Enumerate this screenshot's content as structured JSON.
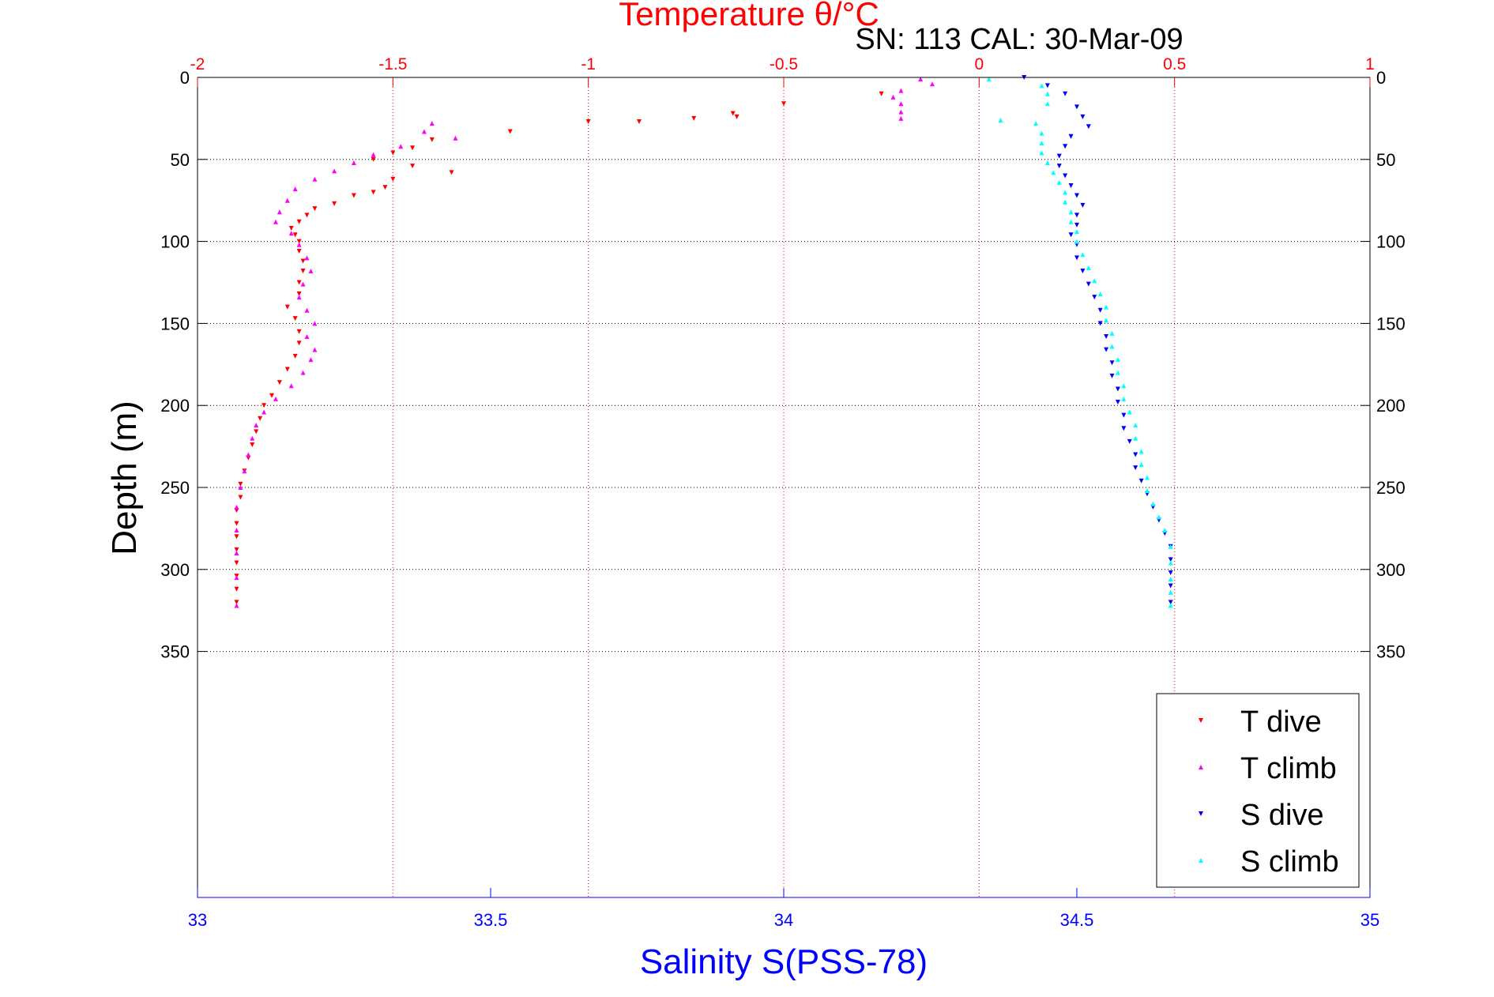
{
  "chart_data": {
    "type": "scatter",
    "title": "Temperature θ/°C",
    "subtitle": "SN: 113  CAL: 30-Mar-09",
    "top_axis": {
      "label": "Temperature θ/°C",
      "range": [
        -2,
        1
      ],
      "ticks": [
        "-2",
        "-1.5",
        "-1",
        "-0.5",
        "0",
        "0.5",
        "1"
      ],
      "color": "#ff0000"
    },
    "bottom_axis": {
      "label": "Salinity S(PSS-78)",
      "range": [
        33,
        35
      ],
      "ticks": [
        "33",
        "33.5",
        "34",
        "34.5",
        "35"
      ],
      "color": "#0000ff"
    },
    "y_axis": {
      "label": "Depth (m)",
      "range": [
        0,
        500
      ],
      "reversed": true,
      "ticks": [
        "0",
        "50",
        "100",
        "150",
        "200",
        "250",
        "300",
        "350"
      ]
    },
    "grid": true,
    "legend_position": "bottom-right",
    "series": [
      {
        "name": "T dive",
        "axis": "temperature",
        "color": "#ff0000",
        "marker": "triangle-down",
        "points": [
          [
            -0.25,
            10
          ],
          [
            -0.5,
            16
          ],
          [
            -0.63,
            22
          ],
          [
            -0.62,
            24
          ],
          [
            -0.73,
            25
          ],
          [
            -0.87,
            27
          ],
          [
            -1.0,
            27
          ],
          [
            -1.2,
            33
          ],
          [
            -1.4,
            38
          ],
          [
            -1.45,
            43
          ],
          [
            -1.5,
            46
          ],
          [
            -1.55,
            50
          ],
          [
            -1.45,
            54
          ],
          [
            -1.35,
            58
          ],
          [
            -1.5,
            62
          ],
          [
            -1.52,
            67
          ],
          [
            -1.55,
            70
          ],
          [
            -1.6,
            72
          ],
          [
            -1.65,
            77
          ],
          [
            -1.7,
            80
          ],
          [
            -1.72,
            84
          ],
          [
            -1.74,
            88
          ],
          [
            -1.76,
            92
          ],
          [
            -1.75,
            96
          ],
          [
            -1.74,
            100
          ],
          [
            -1.74,
            106
          ],
          [
            -1.73,
            112
          ],
          [
            -1.73,
            118
          ],
          [
            -1.74,
            125
          ],
          [
            -1.74,
            132
          ],
          [
            -1.77,
            140
          ],
          [
            -1.75,
            147
          ],
          [
            -1.74,
            155
          ],
          [
            -1.74,
            162
          ],
          [
            -1.75,
            170
          ],
          [
            -1.77,
            178
          ],
          [
            -1.79,
            186
          ],
          [
            -1.81,
            194
          ],
          [
            -1.83,
            200
          ],
          [
            -1.84,
            208
          ],
          [
            -1.85,
            216
          ],
          [
            -1.86,
            224
          ],
          [
            -1.87,
            232
          ],
          [
            -1.88,
            240
          ],
          [
            -1.89,
            248
          ],
          [
            -1.89,
            256
          ],
          [
            -1.9,
            264
          ],
          [
            -1.9,
            272
          ],
          [
            -1.9,
            280
          ],
          [
            -1.9,
            288
          ],
          [
            -1.9,
            296
          ],
          [
            -1.9,
            304
          ],
          [
            -1.9,
            312
          ],
          [
            -1.9,
            320
          ]
        ]
      },
      {
        "name": "T climb",
        "axis": "temperature",
        "color": "#ff00ff",
        "marker": "triangle-up",
        "points": [
          [
            -0.15,
            1
          ],
          [
            -0.12,
            4
          ],
          [
            -0.2,
            8
          ],
          [
            -0.22,
            12
          ],
          [
            -0.2,
            16
          ],
          [
            -0.2,
            21
          ],
          [
            -0.2,
            25
          ],
          [
            -1.4,
            28
          ],
          [
            -1.42,
            33
          ],
          [
            -1.34,
            37
          ],
          [
            -1.48,
            42
          ],
          [
            -1.55,
            47
          ],
          [
            -1.6,
            52
          ],
          [
            -1.65,
            57
          ],
          [
            -1.7,
            62
          ],
          [
            -1.75,
            68
          ],
          [
            -1.77,
            75
          ],
          [
            -1.79,
            82
          ],
          [
            -1.8,
            88
          ],
          [
            -1.76,
            95
          ],
          [
            -1.74,
            102
          ],
          [
            -1.72,
            110
          ],
          [
            -1.71,
            118
          ],
          [
            -1.73,
            126
          ],
          [
            -1.74,
            134
          ],
          [
            -1.72,
            142
          ],
          [
            -1.7,
            150
          ],
          [
            -1.72,
            158
          ],
          [
            -1.7,
            166
          ],
          [
            -1.71,
            172
          ],
          [
            -1.73,
            180
          ],
          [
            -1.76,
            188
          ],
          [
            -1.8,
            196
          ],
          [
            -1.83,
            204
          ],
          [
            -1.85,
            212
          ],
          [
            -1.86,
            220
          ],
          [
            -1.87,
            230
          ],
          [
            -1.88,
            240
          ],
          [
            -1.89,
            250
          ],
          [
            -1.9,
            262
          ],
          [
            -1.9,
            276
          ],
          [
            -1.9,
            290
          ],
          [
            -1.9,
            305
          ],
          [
            -1.9,
            322
          ]
        ]
      },
      {
        "name": "S dive",
        "axis": "salinity",
        "color": "#0000ff",
        "marker": "triangle-down",
        "points": [
          [
            34.41,
            0
          ],
          [
            34.45,
            5
          ],
          [
            34.48,
            10
          ],
          [
            34.5,
            18
          ],
          [
            34.51,
            24
          ],
          [
            34.52,
            30
          ],
          [
            34.49,
            36
          ],
          [
            34.48,
            42
          ],
          [
            34.47,
            48
          ],
          [
            34.47,
            54
          ],
          [
            34.48,
            60
          ],
          [
            34.49,
            66
          ],
          [
            34.5,
            72
          ],
          [
            34.51,
            78
          ],
          [
            34.5,
            84
          ],
          [
            34.5,
            90
          ],
          [
            34.49,
            96
          ],
          [
            34.5,
            102
          ],
          [
            34.5,
            110
          ],
          [
            34.51,
            118
          ],
          [
            34.52,
            126
          ],
          [
            34.53,
            134
          ],
          [
            34.54,
            142
          ],
          [
            34.54,
            150
          ],
          [
            34.55,
            158
          ],
          [
            34.55,
            166
          ],
          [
            34.56,
            174
          ],
          [
            34.56,
            182
          ],
          [
            34.57,
            190
          ],
          [
            34.57,
            198
          ],
          [
            34.58,
            206
          ],
          [
            34.58,
            214
          ],
          [
            34.59,
            222
          ],
          [
            34.6,
            230
          ],
          [
            34.6,
            238
          ],
          [
            34.61,
            246
          ],
          [
            34.62,
            254
          ],
          [
            34.63,
            262
          ],
          [
            34.64,
            270
          ],
          [
            34.65,
            278
          ],
          [
            34.66,
            286
          ],
          [
            34.66,
            294
          ],
          [
            34.66,
            302
          ],
          [
            34.66,
            310
          ],
          [
            34.66,
            320
          ]
        ]
      },
      {
        "name": "S climb",
        "axis": "salinity",
        "color": "#00ffff",
        "marker": "triangle-up",
        "points": [
          [
            34.35,
            1
          ],
          [
            34.44,
            5
          ],
          [
            34.45,
            10
          ],
          [
            34.45,
            16
          ],
          [
            34.37,
            26
          ],
          [
            34.43,
            28
          ],
          [
            34.44,
            34
          ],
          [
            34.44,
            40
          ],
          [
            34.44,
            46
          ],
          [
            34.45,
            52
          ],
          [
            34.46,
            58
          ],
          [
            34.47,
            64
          ],
          [
            34.48,
            70
          ],
          [
            34.48,
            76
          ],
          [
            34.49,
            82
          ],
          [
            34.49,
            88
          ],
          [
            34.5,
            94
          ],
          [
            34.5,
            100
          ],
          [
            34.51,
            108
          ],
          [
            34.52,
            116
          ],
          [
            34.53,
            124
          ],
          [
            34.54,
            132
          ],
          [
            34.55,
            140
          ],
          [
            34.55,
            148
          ],
          [
            34.56,
            156
          ],
          [
            34.56,
            164
          ],
          [
            34.57,
            172
          ],
          [
            34.57,
            180
          ],
          [
            34.58,
            188
          ],
          [
            34.58,
            196
          ],
          [
            34.59,
            204
          ],
          [
            34.6,
            212
          ],
          [
            34.6,
            220
          ],
          [
            34.61,
            228
          ],
          [
            34.61,
            236
          ],
          [
            34.62,
            244
          ],
          [
            34.62,
            252
          ],
          [
            34.63,
            260
          ],
          [
            34.64,
            268
          ],
          [
            34.65,
            276
          ],
          [
            34.66,
            286
          ],
          [
            34.66,
            296
          ],
          [
            34.66,
            306
          ],
          [
            34.66,
            314
          ],
          [
            34.66,
            322
          ]
        ]
      }
    ]
  }
}
